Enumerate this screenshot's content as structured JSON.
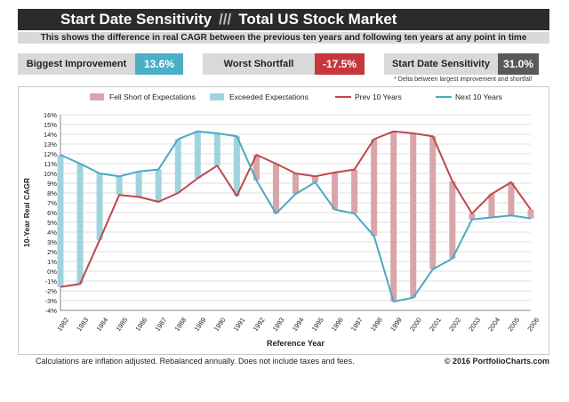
{
  "title": {
    "part1": "Start Date Sensitivity",
    "separator": "///",
    "part2": "Total US Stock Market"
  },
  "subtitle": "This shows the difference in real CAGR between the previous ten years and following ten years at any point in time",
  "stats": [
    {
      "label": "Biggest Improvement",
      "value": "13.6%",
      "color": "#4aafc7"
    },
    {
      "label": "Worst Shortfall",
      "value": "-17.5%",
      "color": "#c6373d"
    },
    {
      "label": "Start Date Sensitivity",
      "value": "31.0%",
      "color": "#595959"
    }
  ],
  "note": "* Delta between largest improvement and shortfall",
  "footer": {
    "left": "Calculations are inflation adjusted.  Rebalanced annually.  Does not include taxes and fees.",
    "right": "© 2016 PortfolioCharts.com"
  },
  "chart_data": {
    "type": "line",
    "xlabel": "Reference Year",
    "ylabel": "10-Year Real CAGR",
    "ylim": [
      -4,
      16
    ],
    "ytick_step": 1,
    "grid": true,
    "legend_position": "top",
    "categories": [
      "1982",
      "1983",
      "1984",
      "1985",
      "1986",
      "1987",
      "1988",
      "1989",
      "1990",
      "1991",
      "1992",
      "1993",
      "1994",
      "1995",
      "1996",
      "1997",
      "1998",
      "1999",
      "2000",
      "2001",
      "2002",
      "2003",
      "2004",
      "2005",
      "2006"
    ],
    "legend": [
      {
        "name": "Fell Short of Expectations",
        "kind": "bar",
        "color": "#d8a5a8"
      },
      {
        "name": "Exceeded Expectations",
        "kind": "bar",
        "color": "#9fd4dd"
      },
      {
        "name": "Prev 10 Years",
        "kind": "line",
        "color": "#c0474d"
      },
      {
        "name": "Next 10 Years",
        "kind": "line",
        "color": "#4aa9c4"
      }
    ],
    "series": [
      {
        "name": "Prev 10 Years",
        "values": [
          -1.6,
          -1.3,
          3.2,
          7.8,
          7.6,
          7.1,
          8.0,
          9.5,
          10.8,
          7.7,
          11.9,
          11.0,
          10.0,
          9.7,
          10.1,
          10.4,
          13.5,
          14.3,
          14.1,
          13.8,
          9.2,
          5.9,
          7.9,
          9.1,
          6.3
        ]
      },
      {
        "name": "Next 10 Years",
        "values": [
          11.9,
          11.0,
          10.0,
          9.7,
          10.2,
          10.4,
          13.5,
          14.3,
          14.1,
          13.8,
          9.3,
          5.9,
          7.9,
          9.1,
          6.3,
          5.9,
          3.6,
          -3.1,
          -2.7,
          0.2,
          1.3,
          5.3,
          5.5,
          5.7,
          5.4
        ]
      }
    ]
  }
}
